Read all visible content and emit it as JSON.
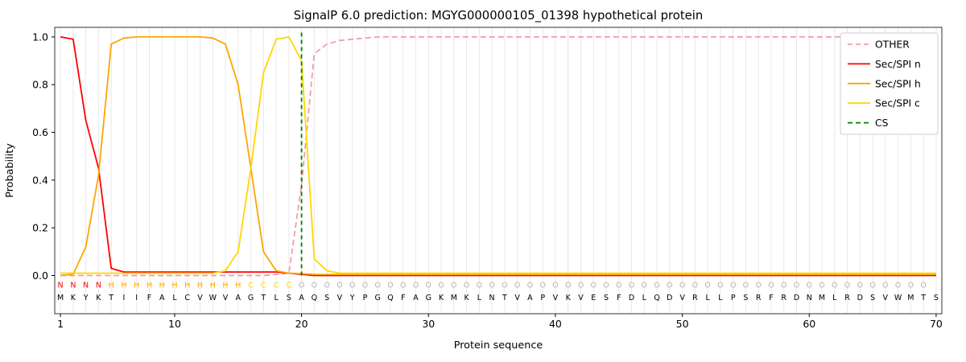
{
  "chart_data": {
    "type": "line",
    "title": "SignalP 6.0 prediction: MGYG000000105_01398 hypothetical protein",
    "xlabel": "Protein sequence",
    "ylabel": "Probability",
    "x_ticks": [
      1,
      10,
      20,
      30,
      40,
      50,
      60,
      70
    ],
    "y_ticks": [
      0.0,
      0.2,
      0.4,
      0.6,
      0.8,
      1.0
    ],
    "xlim": [
      0.55,
      70.45
    ],
    "ylim": [
      -0.16,
      1.04
    ],
    "grid": "vertical-per-residue",
    "legend_position": "upper right",
    "colors": {
      "frame": "#333333",
      "grid": "#e8e8e8",
      "sequence_letters": "#000000",
      "tick_text": "#000000"
    },
    "region_colors": {
      "N": "#ff0000",
      "H": "#ffa500",
      "C": "#ffd700",
      "O": "#b3b3b3"
    },
    "sequence": "MKYKTIIFALCVWVAGTLSAQSVYPGQFAGKMKLNTVAPVKVESFDLQDVRLLPSRFRDNMLRDSVWMTS",
    "region_labels": "NNNNHHHHHHHHHHHCCCCOOOOOOOOOOOOOOOOOOOOOOOOOOOOOOOOOOOOOOOOOOOOOOOOOO",
    "rows": {
      "region_y": -0.05,
      "sequence_y": -0.103
    },
    "series": [
      {
        "id": "other",
        "name": "OTHER",
        "color": "#f59ca4",
        "dash": true,
        "values": [
          0,
          0,
          0,
          0,
          0,
          0,
          0,
          0,
          0,
          0,
          0,
          0,
          0,
          0,
          0,
          0,
          0,
          0.005,
          0.01,
          0.38,
          0.93,
          0.97,
          0.985,
          0.99,
          0.995,
          1,
          1,
          1,
          1,
          1,
          1,
          1,
          1,
          1,
          1,
          1,
          1,
          1,
          1,
          1,
          1,
          1,
          1,
          1,
          1,
          1,
          1,
          1,
          1,
          1,
          1,
          1,
          1,
          1,
          1,
          1,
          1,
          1,
          1,
          1,
          1,
          1,
          1,
          1,
          1,
          1,
          1,
          1,
          1,
          1
        ]
      },
      {
        "id": "n",
        "name": "Sec/SPI n",
        "color": "#ff0000",
        "dash": false,
        "values": [
          1.0,
          0.99,
          0.65,
          0.45,
          0.03,
          0.015,
          0.015,
          0.015,
          0.015,
          0.015,
          0.015,
          0.015,
          0.015,
          0.015,
          0.015,
          0.015,
          0.015,
          0.015,
          0.01,
          0.005,
          0,
          0,
          0,
          0,
          0,
          0,
          0,
          0,
          0,
          0,
          0,
          0,
          0,
          0,
          0,
          0,
          0,
          0,
          0,
          0,
          0,
          0,
          0,
          0,
          0,
          0,
          0,
          0,
          0,
          0,
          0,
          0,
          0,
          0,
          0,
          0,
          0,
          0,
          0,
          0,
          0,
          0,
          0,
          0,
          0,
          0,
          0,
          0,
          0,
          0
        ]
      },
      {
        "id": "h",
        "name": "Sec/SPI h",
        "color": "#ffa500",
        "dash": false,
        "values": [
          0,
          0.005,
          0.12,
          0.42,
          0.97,
          0.995,
          1,
          1,
          1,
          1,
          1,
          1,
          0.995,
          0.97,
          0.8,
          0.45,
          0.1,
          0.02,
          0.01,
          0.008,
          0.005,
          0.005,
          0.005,
          0.005,
          0.005,
          0.005,
          0.005,
          0.005,
          0.005,
          0.005,
          0.005,
          0.005,
          0.005,
          0.005,
          0.005,
          0.005,
          0.005,
          0.005,
          0.005,
          0.005,
          0.005,
          0.005,
          0.005,
          0.005,
          0.005,
          0.005,
          0.005,
          0.005,
          0.005,
          0.005,
          0.005,
          0.005,
          0.005,
          0.005,
          0.005,
          0.005,
          0.005,
          0.005,
          0.005,
          0.005,
          0.005,
          0.005,
          0.005,
          0.005,
          0.005,
          0.005,
          0.005,
          0.005,
          0.005,
          0.005
        ]
      },
      {
        "id": "c",
        "name": "Sec/SPI c",
        "color": "#ffd700",
        "dash": false,
        "values": [
          0.01,
          0.01,
          0.01,
          0.01,
          0.01,
          0.01,
          0.01,
          0.01,
          0.01,
          0.01,
          0.01,
          0.01,
          0.01,
          0.02,
          0.1,
          0.45,
          0.85,
          0.99,
          1.0,
          0.9,
          0.07,
          0.02,
          0.01,
          0.01,
          0.01,
          0.01,
          0.01,
          0.01,
          0.01,
          0.01,
          0.01,
          0.01,
          0.01,
          0.01,
          0.01,
          0.01,
          0.01,
          0.01,
          0.01,
          0.01,
          0.01,
          0.01,
          0.01,
          0.01,
          0.01,
          0.01,
          0.01,
          0.01,
          0.01,
          0.01,
          0.01,
          0.01,
          0.01,
          0.01,
          0.01,
          0.01,
          0.01,
          0.01,
          0.01,
          0.01,
          0.01,
          0.01,
          0.01,
          0.01,
          0.01,
          0.01,
          0.01,
          0.01,
          0.01,
          0.01
        ]
      },
      {
        "id": "cs",
        "name": "CS",
        "color": "#008000",
        "dash": true,
        "x": 20
      }
    ]
  }
}
